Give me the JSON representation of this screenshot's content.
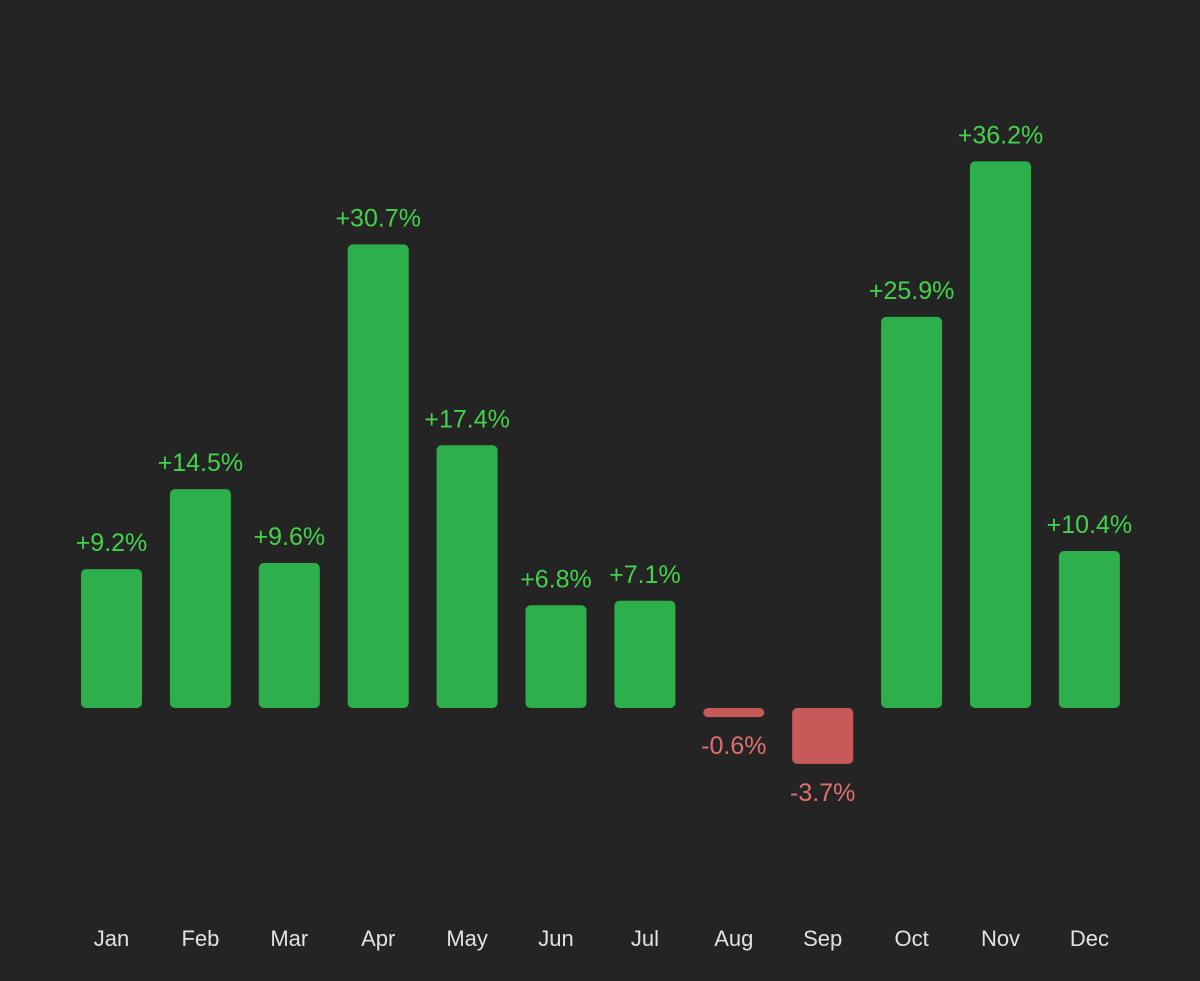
{
  "chart_data": {
    "type": "bar",
    "title": "",
    "xlabel": "",
    "ylabel": "",
    "categories": [
      "Jan",
      "Feb",
      "Mar",
      "Apr",
      "May",
      "Jun",
      "Jul",
      "Aug",
      "Sep",
      "Oct",
      "Nov",
      "Dec"
    ],
    "values": [
      9.2,
      14.5,
      9.6,
      30.7,
      17.4,
      6.8,
      7.1,
      -0.6,
      -3.7,
      25.9,
      36.2,
      10.4
    ],
    "data_labels": [
      "+9.2%",
      "+14.5%",
      "+9.6%",
      "+30.7%",
      "+17.4%",
      "+6.8%",
      "+7.1%",
      "-0.6%",
      "-3.7%",
      "+25.9%",
      "+36.2%",
      "+10.4%"
    ],
    "unit": "%",
    "grid": false,
    "legend": "none",
    "colors": {
      "background": "#242424",
      "positive_bar": "#2db04b",
      "negative_bar": "#c75959",
      "positive_label": "#43d34a",
      "negative_label": "#e07070",
      "month_label": "#e2e2e2"
    }
  }
}
